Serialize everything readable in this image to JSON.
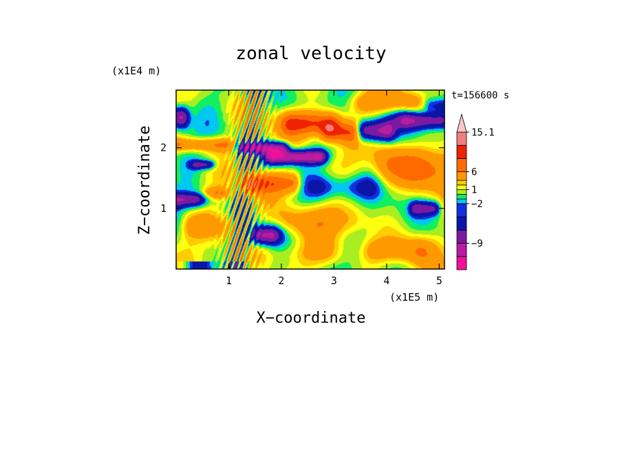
{
  "chart_data": {
    "type": "heatmap",
    "title": "zonal velocity",
    "xlabel": "X−coordinate",
    "ylabel": "Z−coordinate",
    "x_unit": "(x1E5 m)",
    "y_unit": "(x1E4 m)",
    "time_label": "t=156600 s",
    "xlim": [
      0,
      5.1
    ],
    "ylim": [
      0,
      2.95
    ],
    "x_ticks": [
      1,
      2,
      3,
      4,
      5
    ],
    "y_ticks": [
      1,
      2
    ],
    "colorbar": {
      "levels": [
        -15,
        -12,
        -9,
        -6,
        -3,
        -2,
        -1,
        0,
        1,
        2,
        3,
        6,
        9,
        12,
        15.1
      ],
      "labels": [
        {
          "text": "15.1",
          "value": 15.1
        },
        {
          "text": "6",
          "value": 6
        },
        {
          "text": "1",
          "value": 1
        },
        {
          "text": "−2",
          "value": -2
        },
        {
          "text": "−9",
          "value": -9
        }
      ],
      "colors": [
        "#ee1199",
        "#b81ca0",
        "#7a1aa0",
        "#0b16a8",
        "#1030e0",
        "#00c8f0",
        "#10f060",
        "#a8ee20",
        "#ffff10",
        "#ffcc00",
        "#ff9900",
        "#ff6a00",
        "#ee2200",
        "#f08080",
        "#f8c8c8"
      ],
      "extend_max": true
    },
    "features": [
      {
        "kind": "jet",
        "value": 9.5,
        "x0": 2.2,
        "x1": 2.9,
        "z": 2.4,
        "hw": 0.17,
        "hz": 0.14
      },
      {
        "kind": "jet",
        "value": 8,
        "x0": 1.4,
        "x1": 2.2,
        "z": 1.42,
        "hw": 0.12,
        "hz": 0.13
      },
      {
        "kind": "jet",
        "value": 7,
        "x0": 2.9,
        "x1": 3.3,
        "z": 2.25,
        "hw": 0.12,
        "hz": 0.12
      },
      {
        "kind": "jet",
        "value": 6,
        "x0": 0.05,
        "x1": 0.9,
        "z": 2.05,
        "hw": 0.15,
        "hz": 0.08
      },
      {
        "kind": "jet",
        "value": 5,
        "x0": 0.05,
        "x1": 0.8,
        "z": 1.25,
        "hw": 0.15,
        "hz": 0.07
      },
      {
        "kind": "jet",
        "value": -12,
        "x0": 1.85,
        "x1": 2.7,
        "z": 1.85,
        "hw": 0.12,
        "hz": 0.08
      },
      {
        "kind": "jet",
        "value": -10,
        "x0": 1.3,
        "x1": 2.0,
        "z": 2.0,
        "hw": 0.1,
        "hz": 0.07
      },
      {
        "kind": "jet",
        "value": -11,
        "x0": 0.05,
        "x1": 0.35,
        "z": 1.18,
        "hw": 0.18,
        "hz": 0.1
      },
      {
        "kind": "jet",
        "value": -11,
        "x0": 0.0,
        "x1": 0.1,
        "z": 2.5,
        "hw": 0.1,
        "hz": 0.12
      },
      {
        "kind": "jet",
        "value": -9,
        "x0": 4.4,
        "x1": 5.0,
        "z": 2.45,
        "hw": 0.18,
        "hz": 0.1
      },
      {
        "kind": "jet",
        "value": -10,
        "x0": 3.6,
        "x1": 4.0,
        "z": 2.28,
        "hw": 0.12,
        "hz": 0.12
      },
      {
        "kind": "jet",
        "value": -9,
        "x0": 1.6,
        "x1": 1.8,
        "z": 0.56,
        "hw": 0.14,
        "hz": 0.1
      },
      {
        "kind": "jet",
        "value": -7,
        "x0": 0.4,
        "x1": 0.6,
        "z": 1.72,
        "hw": 0.1,
        "hz": 0.05
      },
      {
        "kind": "jet",
        "value": -7,
        "x0": 4.55,
        "x1": 4.9,
        "z": 1.0,
        "hw": 0.08,
        "hz": 0.08
      },
      {
        "kind": "jet",
        "value": -5,
        "x0": 4.85,
        "x1": 5.1,
        "z": 2.7,
        "hw": 0.1,
        "hz": 0.09
      },
      {
        "kind": "jet",
        "value": -4,
        "x0": 2.8,
        "x1": 3.6,
        "z": 1.35,
        "hw": 0.2,
        "hz": 0.15
      },
      {
        "kind": "jet",
        "value": 6,
        "x0": 4.1,
        "x1": 5.1,
        "z": 1.7,
        "hw": 0.25,
        "hz": 0.25
      },
      {
        "kind": "jet",
        "value": 4,
        "x0": 3.6,
        "x1": 4.4,
        "z": 2.75,
        "hw": 0.2,
        "hz": 0.12
      },
      {
        "kind": "jet",
        "value": 4,
        "x0": 3.8,
        "x1": 4.6,
        "z": 0.3,
        "hw": 0.2,
        "hz": 0.15
      },
      {
        "kind": "jet",
        "value": 3,
        "x0": 2.2,
        "x1": 3.3,
        "z": 0.8,
        "hw": 0.25,
        "hz": 0.18
      },
      {
        "kind": "jet",
        "value": 3.5,
        "x0": 0.3,
        "x1": 1.0,
        "z": 0.7,
        "hw": 0.15,
        "hz": 0.15
      },
      {
        "kind": "jet",
        "value": 2.5,
        "x0": 1.7,
        "x1": 2.8,
        "z": 0.25,
        "hw": 0.25,
        "hz": 0.15
      }
    ]
  }
}
